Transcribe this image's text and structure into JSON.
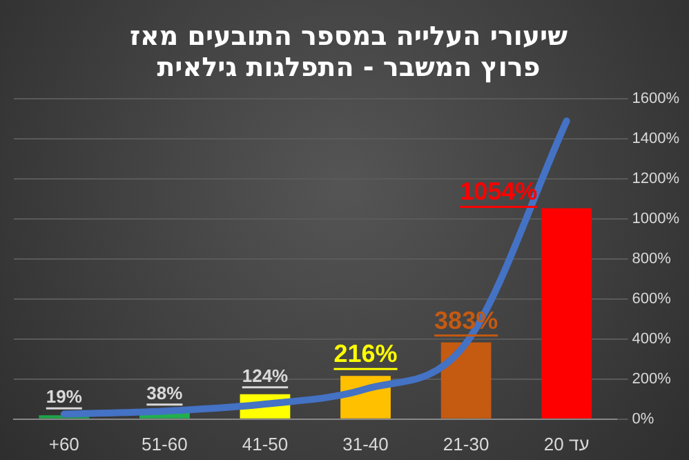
{
  "chart_data": {
    "type": "bar",
    "title": "שיעורי העלייה במספר התובעים מאז\nפרוץ המשבר - התפלגות גילאית",
    "categories": [
      "+60",
      "51-60",
      "41-50",
      "31-40",
      "21-30",
      "עד 20"
    ],
    "series": [
      {
        "colors": [
          "#1fa34a",
          "#22b04e",
          "#ffff00",
          "#ffc000",
          "#c55a11",
          "#ff0000"
        ],
        "values": [
          19,
          38,
          124,
          216,
          383,
          1054
        ],
        "value_labels": [
          "19%",
          "38%",
          "124%",
          "216%",
          "383%",
          "1054%"
        ]
      },
      {
        "type": "line",
        "color": "#4472c4",
        "values": [
          25,
          40,
          75,
          150,
          380,
          1490
        ]
      }
    ],
    "ylim": [
      0,
      1600
    ],
    "yticks": [
      {
        "value": 0,
        "label": "0%"
      },
      {
        "value": 200,
        "label": "200%"
      },
      {
        "value": 400,
        "label": "400%"
      },
      {
        "value": 600,
        "label": "600%"
      },
      {
        "value": 800,
        "label": "800%"
      },
      {
        "value": 1000,
        "label": "1000%"
      },
      {
        "value": 1200,
        "label": "1200%"
      },
      {
        "value": 1400,
        "label": "1400%"
      },
      {
        "value": 1600,
        "label": "1600%"
      }
    ],
    "grid": "y",
    "legend": false,
    "marker": "none"
  }
}
